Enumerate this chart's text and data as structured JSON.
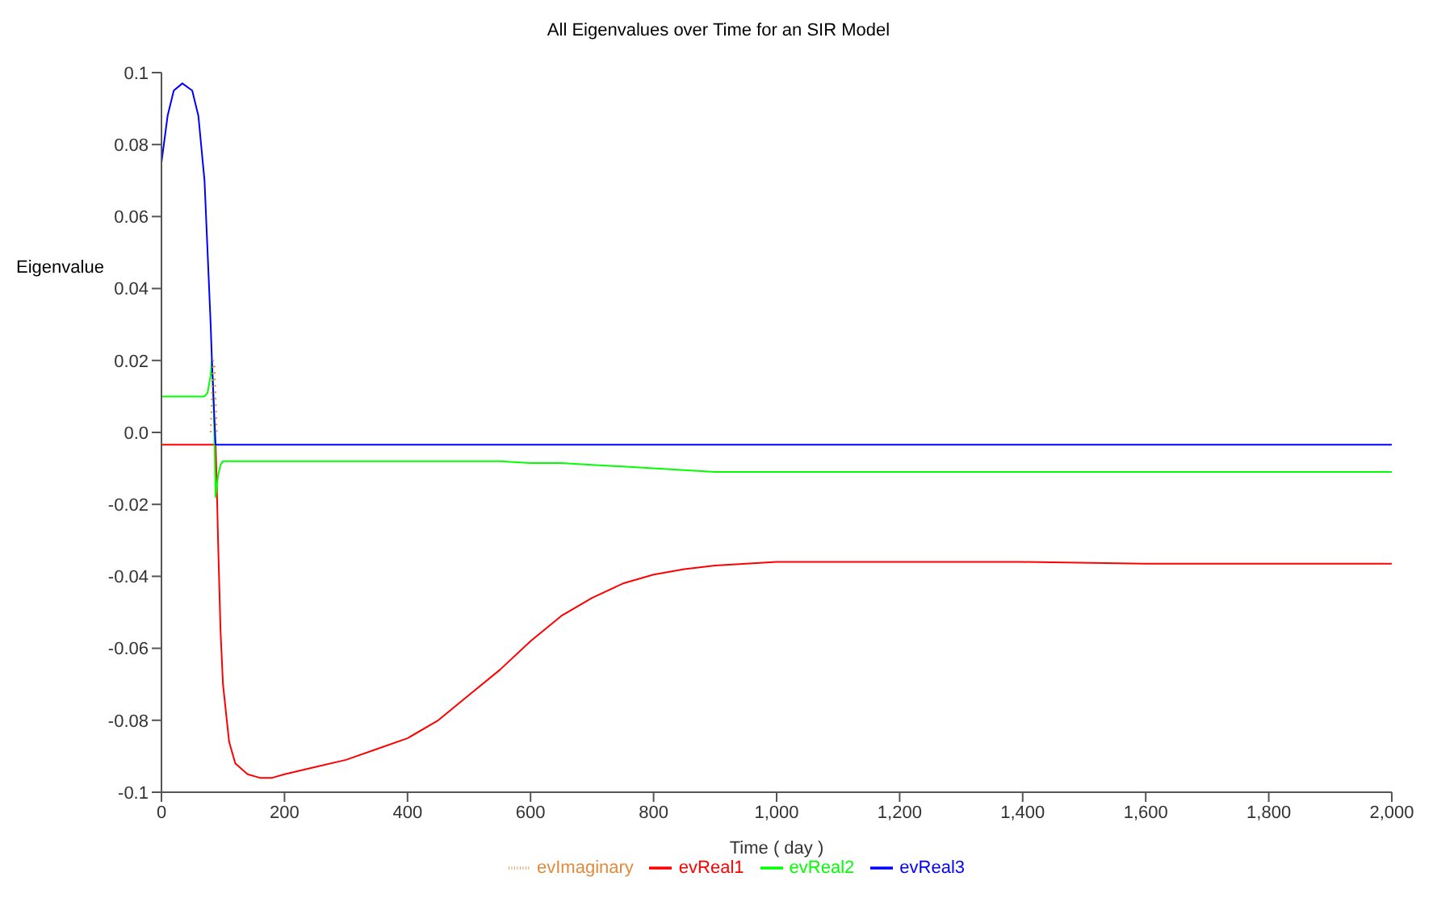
{
  "chart_data": {
    "type": "line",
    "title": "All Eigenvalues over Time for an SIR Model",
    "xlabel": "Time ( day )",
    "ylabel": "Eigenvalue",
    "x": [
      0,
      10,
      20,
      34,
      50,
      60,
      70,
      75,
      80,
      82,
      84,
      86,
      88,
      90,
      92,
      96,
      100,
      110,
      120,
      140,
      160,
      180,
      200,
      250,
      300,
      350,
      400,
      450,
      500,
      550,
      600,
      650,
      700,
      750,
      800,
      850,
      900,
      950,
      1000,
      1100,
      1200,
      1400,
      1600,
      1800,
      2000
    ],
    "series": [
      {
        "name": "evReal1",
        "color": "#ff0000",
        "values": [
          -0.0034,
          -0.0034,
          -0.0034,
          -0.0034,
          -0.0034,
          -0.0034,
          -0.0034,
          -0.0034,
          -0.0034,
          -0.0034,
          -0.0034,
          -0.0034,
          -0.0034,
          -0.015,
          -0.03,
          -0.055,
          -0.07,
          -0.086,
          -0.092,
          -0.095,
          -0.096,
          -0.096,
          -0.095,
          -0.093,
          -0.091,
          -0.088,
          -0.085,
          -0.08,
          -0.073,
          -0.066,
          -0.058,
          -0.051,
          -0.046,
          -0.042,
          -0.0395,
          -0.038,
          -0.037,
          -0.0365,
          -0.036,
          -0.036,
          -0.036,
          -0.036,
          -0.0365,
          -0.0365,
          -0.0365
        ]
      },
      {
        "name": "evReal2",
        "color": "#00ff00",
        "values": [
          0.01,
          0.01,
          0.01,
          0.01,
          0.01,
          0.01,
          0.01,
          0.011,
          0.016,
          0.02,
          0.012,
          0.0,
          -0.018,
          -0.015,
          -0.012,
          -0.009,
          -0.008,
          -0.008,
          -0.008,
          -0.008,
          -0.008,
          -0.008,
          -0.008,
          -0.008,
          -0.008,
          -0.008,
          -0.008,
          -0.008,
          -0.008,
          -0.008,
          -0.0085,
          -0.0085,
          -0.009,
          -0.0095,
          -0.01,
          -0.0105,
          -0.011,
          -0.011,
          -0.011,
          -0.011,
          -0.011,
          -0.011,
          -0.011,
          -0.011,
          -0.011
        ]
      },
      {
        "name": "evReal3",
        "color": "#0000ff",
        "values": [
          0.075,
          0.088,
          0.095,
          0.097,
          0.095,
          0.088,
          0.07,
          0.05,
          0.03,
          0.02,
          0.012,
          0.004,
          -0.0034,
          -0.0034,
          -0.0034,
          -0.0034,
          -0.0034,
          -0.0034,
          -0.0034,
          -0.0034,
          -0.0034,
          -0.0034,
          -0.0034,
          -0.0034,
          -0.0034,
          -0.0034,
          -0.0034,
          -0.0034,
          -0.0034,
          -0.0034,
          -0.0034,
          -0.0034,
          -0.0034,
          -0.0034,
          -0.0034,
          -0.0034,
          -0.0034,
          -0.0034,
          -0.0034,
          -0.0034,
          -0.0034,
          -0.0034,
          -0.0034,
          -0.0034,
          -0.0034
        ]
      },
      {
        "name": "evImaginary",
        "color": "#e08a3c",
        "line_style": "dotted",
        "values": [
          null,
          null,
          null,
          null,
          null,
          null,
          null,
          null,
          0,
          0.01,
          0.02,
          0.019,
          0.01,
          0,
          null,
          null,
          null,
          null,
          null,
          null,
          null,
          null,
          null,
          null,
          null,
          null,
          null,
          null,
          null,
          null,
          null,
          null,
          null,
          null,
          null,
          null,
          null,
          null,
          null,
          null,
          null,
          null,
          null,
          null,
          null
        ]
      }
    ],
    "xlim": [
      0,
      2000
    ],
    "xticks": [
      0,
      200,
      400,
      600,
      800,
      {
        "value": 1000,
        "label": "1,000"
      },
      {
        "value": 1200,
        "label": "1,200"
      },
      {
        "value": 1400,
        "label": "1,400"
      },
      {
        "value": 1600,
        "label": "1,600"
      },
      {
        "value": 1800,
        "label": "1,800"
      },
      {
        "value": 2000,
        "label": "2,000"
      }
    ],
    "ylim": [
      -0.1,
      0.1
    ],
    "yticks": [
      -0.1,
      -0.08,
      -0.06,
      -0.04,
      -0.02,
      {
        "value": 0,
        "label": "0.0"
      },
      0.02,
      0.04,
      0.06,
      0.08,
      0.1
    ],
    "grid": false,
    "legend": "bottom",
    "marker": "none",
    "line_style": "solid"
  }
}
